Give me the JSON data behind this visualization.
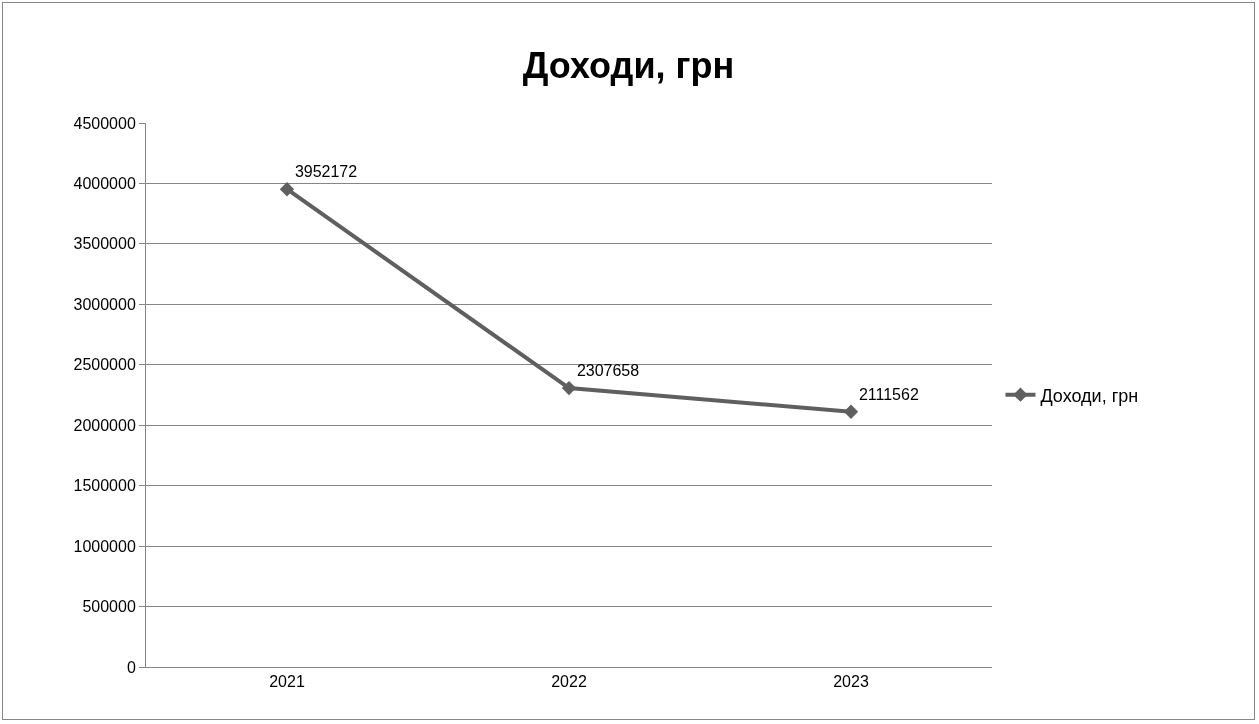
{
  "chart_data": {
    "type": "line",
    "title": "Доходи, грн",
    "categories": [
      "2021",
      "2022",
      "2023"
    ],
    "series": [
      {
        "name": "Доходи, грн",
        "color": "#5f5f5f",
        "values": [
          3952172,
          2307658,
          2111562
        ]
      }
    ],
    "ylim": [
      0,
      4500000
    ],
    "yticks": [
      0,
      500000,
      1000000,
      1500000,
      2000000,
      2500000,
      3000000,
      3500000,
      4000000,
      4500000
    ],
    "grid": "y",
    "legend": "right",
    "marker": "diamond",
    "line_style": "solid",
    "data_labels": true
  }
}
